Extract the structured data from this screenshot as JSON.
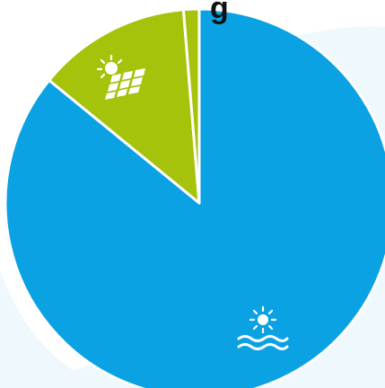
{
  "chart_data": {
    "type": "pie",
    "title": "g",
    "slices": [
      {
        "label": "",
        "icon": "solar-thermal-icon",
        "value": 85.9,
        "color": "#0aa2e2"
      },
      {
        "label": "",
        "icon": "solar-panel-icon",
        "value": 12.8,
        "color": "#a6c30c"
      },
      {
        "label": "",
        "icon": "",
        "value": 1.3,
        "color": "#a6c30c"
      }
    ],
    "legend": "none",
    "grid": false
  },
  "colors": {
    "background_swoosh": "#eef8fd",
    "slice_border": "#ffffff",
    "icon_fill": "#ffffff",
    "title": "#111111"
  }
}
